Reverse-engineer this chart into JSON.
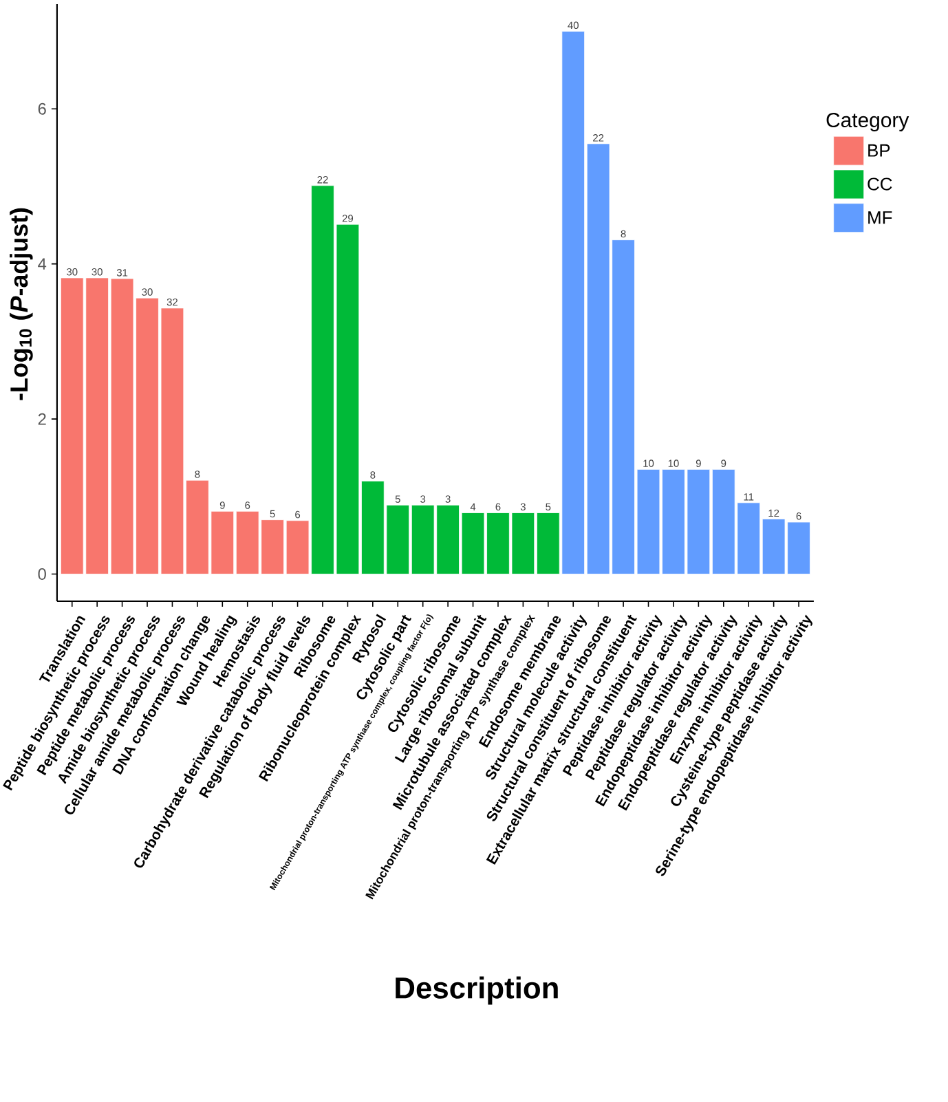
{
  "chart_data": {
    "type": "bar",
    "xlabel": "Description",
    "ylabel": "-Log$_{10}$ (*P*-adjust)",
    "legend_title": "Category",
    "legend": "right",
    "categories": [
      "Translation",
      "Peptide biosynthetic process",
      "Peptide metabolic process",
      "Amide biosynthetic process",
      "Cellular amide metabolic process",
      "DNA conformation change",
      "Wound healing",
      "Hemostasis",
      "Carbohydrate derivative catabolic process",
      "Regulation of body fluid levels",
      "Ribosome",
      "Ribonucleoprotein complex",
      "Rytosol",
      "Cytosolic part",
      "Mitochondrial proton-transporting ATP synthase complex, coupling factor F(o)",
      "Cytosolic ribosome",
      "Large ribosomal subunit",
      "Microtubule associated complex",
      "Mitochondrial proton-transporting ATP synthase complex",
      "Endosome membrane",
      "Structural molecule activity",
      "Structural constituent of ribosome",
      "Extracellular matrix structural constituent",
      "Peptidase inhibitor activity",
      "Peptidase regulator activity",
      "Endopeptidase inhibitor activity",
      "Endopeptidase regulator activity",
      "Enzyme inhibitor activity",
      "Cysteine-type peptidase activity",
      "Serine-type endopeptidase inhibitor activity"
    ],
    "series": [
      {
        "name": "BP",
        "color": "#f8766d",
        "values": [
          3.82,
          3.82,
          3.81,
          3.56,
          3.43,
          1.21,
          0.81,
          0.81,
          0.7,
          0.69,
          null,
          null,
          null,
          null,
          null,
          null,
          null,
          null,
          null,
          null,
          null,
          null,
          null,
          null,
          null,
          null,
          null,
          null,
          null,
          null
        ]
      },
      {
        "name": "CC",
        "color": "#00ba38",
        "values": [
          null,
          null,
          null,
          null,
          null,
          null,
          null,
          null,
          null,
          null,
          5.01,
          4.51,
          1.2,
          0.89,
          0.89,
          0.89,
          0.79,
          0.79,
          0.79,
          0.79,
          null,
          null,
          null,
          null,
          null,
          null,
          null,
          null,
          null,
          null
        ]
      },
      {
        "name": "MF",
        "color": "#619cff",
        "values": [
          null,
          null,
          null,
          null,
          null,
          null,
          null,
          null,
          null,
          null,
          null,
          null,
          null,
          null,
          null,
          null,
          null,
          null,
          null,
          null,
          7.0,
          5.55,
          4.31,
          1.35,
          1.35,
          1.35,
          1.35,
          0.92,
          0.71,
          0.67
        ]
      }
    ],
    "annotations": [
      {
        "text": "30",
        "x": "Translation",
        "y": 3.82
      },
      {
        "text": "30",
        "x": "Peptide biosynthetic process",
        "y": 3.82
      },
      {
        "text": "31",
        "x": "Peptide metabolic process",
        "y": 3.81
      },
      {
        "text": "30",
        "x": "Amide biosynthetic process",
        "y": 3.56
      },
      {
        "text": "32",
        "x": "Cellular amide metabolic process",
        "y": 3.43
      },
      {
        "text": "8",
        "x": "DNA conformation change",
        "y": 1.21
      },
      {
        "text": "9",
        "x": "Wound healing",
        "y": 0.81
      },
      {
        "text": "6",
        "x": "Hemostasis",
        "y": 0.81
      },
      {
        "text": "5",
        "x": "Carbohydrate derivative catabolic process",
        "y": 0.7
      },
      {
        "text": "6",
        "x": "Regulation of body fluid levels",
        "y": 0.69
      },
      {
        "text": "22",
        "x": "Ribosome",
        "y": 5.01
      },
      {
        "text": "29",
        "x": "Ribonucleoprotein complex",
        "y": 4.51
      },
      {
        "text": "8",
        "x": "Rytosol",
        "y": 1.2
      },
      {
        "text": "5",
        "x": "Cytosolic part",
        "y": 0.89
      },
      {
        "text": "3",
        "x": "Mitochondrial proton-transporting ATP synthase complex, coupling factor F(o)",
        "y": 0.89
      },
      {
        "text": "3",
        "x": "Cytosolic ribosome",
        "y": 0.89
      },
      {
        "text": "4",
        "x": "Large ribosomal subunit",
        "y": 0.79
      },
      {
        "text": "6",
        "x": "Microtubule associated complex",
        "y": 0.79
      },
      {
        "text": "3",
        "x": "Mitochondrial proton-transporting ATP synthase complex",
        "y": 0.79
      },
      {
        "text": "5",
        "x": "Endosome membrane",
        "y": 0.79
      },
      {
        "text": "40",
        "x": "Structural molecule activity",
        "y": 7.0
      },
      {
        "text": "22",
        "x": "Structural constituent of ribosome",
        "y": 5.55
      },
      {
        "text": "8",
        "x": "Extracellular matrix structural constituent",
        "y": 4.31
      },
      {
        "text": "10",
        "x": "Peptidase inhibitor activity",
        "y": 1.35
      },
      {
        "text": "10",
        "x": "Peptidase regulator activity",
        "y": 1.35
      },
      {
        "text": "9",
        "x": "Endopeptidase inhibitor activity",
        "y": 1.35
      },
      {
        "text": "9",
        "x": "Endopeptidase regulator activity",
        "y": 1.35
      },
      {
        "text": "11",
        "x": "Enzyme inhibitor activity",
        "y": 0.92
      },
      {
        "text": "12",
        "x": "Cysteine-type peptidase activity",
        "y": 0.71
      },
      {
        "text": "6",
        "x": "Serine-type endopeptidase inhibitor activity",
        "y": 0.67
      }
    ],
    "ylim": [
      -0.35,
      7.35
    ],
    "yticks": [
      0,
      2,
      4,
      6
    ]
  }
}
